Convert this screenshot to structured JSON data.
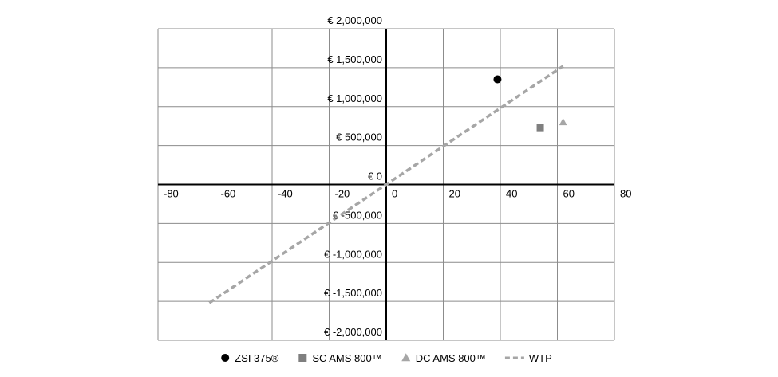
{
  "chart_data": {
    "type": "scatter",
    "title": "",
    "xlabel": "",
    "ylabel": "",
    "xlim": [
      -80,
      80
    ],
    "ylim": [
      -2000000,
      2000000
    ],
    "x_ticks": [
      {
        "value": -80,
        "label": "-80"
      },
      {
        "value": -60,
        "label": "-60"
      },
      {
        "value": -40,
        "label": "-40"
      },
      {
        "value": -20,
        "label": "-20"
      },
      {
        "value": 0,
        "label": "0"
      },
      {
        "value": 20,
        "label": "20"
      },
      {
        "value": 40,
        "label": "40"
      },
      {
        "value": 60,
        "label": "60"
      },
      {
        "value": 80,
        "label": "80"
      }
    ],
    "y_ticks": [
      {
        "value": 2000000,
        "label": "€ 2,000,000"
      },
      {
        "value": 1500000,
        "label": "€ 1,500,000"
      },
      {
        "value": 1000000,
        "label": "€ 1,000,000"
      },
      {
        "value": 500000,
        "label": "€ 500,000"
      },
      {
        "value": 0,
        "label": "€ 0"
      },
      {
        "value": -500000,
        "label": "€ -500,000"
      },
      {
        "value": -1000000,
        "label": "€ -1,000,000"
      },
      {
        "value": -1500000,
        "label": "€ -1,500,000"
      },
      {
        "value": -2000000,
        "label": "€ -2,000,000"
      }
    ],
    "grid": true,
    "legend_position": "bottom",
    "series": [
      {
        "name": "ZSI 375®",
        "kind": "point",
        "marker": "circle",
        "color": "#000000",
        "points": [
          {
            "x": 39,
            "y": 1350000
          }
        ]
      },
      {
        "name": "SC AMS 800™",
        "kind": "point",
        "marker": "square",
        "color": "#7f7f7f",
        "points": [
          {
            "x": 54,
            "y": 730000
          }
        ]
      },
      {
        "name": "DC AMS 800™",
        "kind": "point",
        "marker": "triangle",
        "color": "#a6a6a6",
        "points": [
          {
            "x": 62,
            "y": 800000
          }
        ]
      },
      {
        "name": "WTP",
        "kind": "line",
        "dash": true,
        "color": "#a6a6a6",
        "points": [
          {
            "x": -62,
            "y": -1520000
          },
          {
            "x": 62,
            "y": 1520000
          }
        ]
      }
    ]
  }
}
